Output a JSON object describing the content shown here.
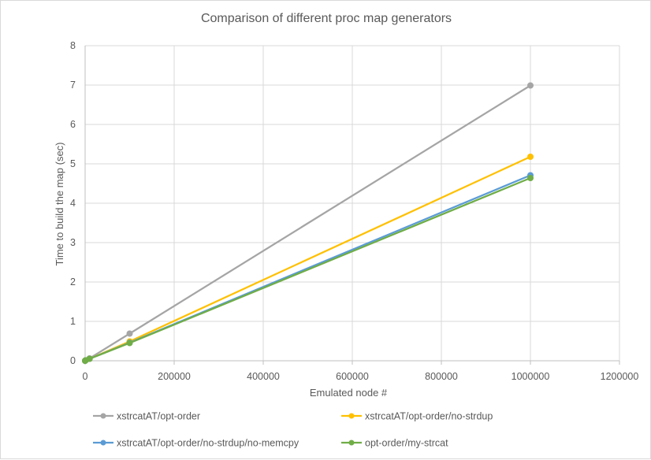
{
  "chart_data": {
    "type": "line",
    "title": "Comparison of different proc map generators",
    "xlabel": "Emulated node #",
    "ylabel": "Time to build the map (sec)",
    "xlim": [
      0,
      1200000
    ],
    "ylim": [
      0,
      8
    ],
    "xticks": [
      0,
      200000,
      400000,
      600000,
      800000,
      1000000,
      1200000
    ],
    "yticks": [
      0,
      1,
      2,
      3,
      4,
      5,
      6,
      7,
      8
    ],
    "grid": true,
    "legend_position": "bottom",
    "series": [
      {
        "name": "xstrcatAT/opt-order",
        "color": "#a5a5a5",
        "x": [
          0,
          1000,
          10000,
          100000,
          1000000
        ],
        "y": [
          0.0,
          0.01,
          0.06,
          0.69,
          6.99
        ]
      },
      {
        "name": "xstrcatAT/opt-order/no-strdup",
        "color": "#ffc000",
        "x": [
          0,
          1000,
          10000,
          100000,
          1000000
        ],
        "y": [
          0.0,
          0.01,
          0.05,
          0.49,
          5.18
        ]
      },
      {
        "name": "xstrcatAT/opt-order/no-strdup/no-memcpy",
        "color": "#5b9bd5",
        "x": [
          0,
          1000,
          10000,
          100000,
          1000000
        ],
        "y": [
          0.0,
          0.01,
          0.05,
          0.46,
          4.71
        ]
      },
      {
        "name": "opt-order/my-strcat",
        "color": "#70ad47",
        "x": [
          0,
          1000,
          10000,
          100000,
          1000000
        ],
        "y": [
          0.0,
          0.01,
          0.05,
          0.45,
          4.64
        ]
      }
    ]
  }
}
